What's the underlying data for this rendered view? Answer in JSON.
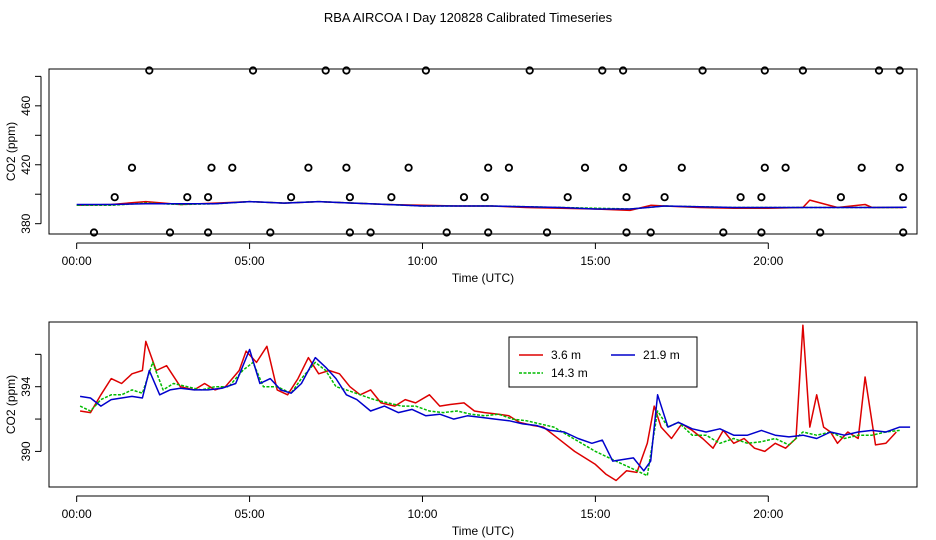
{
  "title": "RBA AIRCOA I  Day 120828  Calibrated Timeseries",
  "colors": {
    "s1": "#dd0000",
    "s2": "#00bb00",
    "s3": "#0000cc",
    "axis": "#000000"
  },
  "chart_data": [
    {
      "type": "line",
      "name": "top-panel",
      "xlabel": "Time (UTC)",
      "ylabel": "CO2 (ppm)",
      "xlim": [
        -0.8,
        24.3
      ],
      "ylim": [
        373,
        485
      ],
      "xticks": [
        0,
        5,
        10,
        15,
        20
      ],
      "xticklabels": [
        "00:00",
        "05:00",
        "10:00",
        "15:00",
        "20:00"
      ],
      "yticks": [
        380,
        420,
        460
      ],
      "yticklabels": [
        "380",
        "420",
        "460"
      ],
      "extra_yticks": [
        400,
        440,
        480
      ],
      "series": [
        {
          "name": "3.6 m",
          "color": "#dd0000",
          "x": [
            0,
            1,
            2,
            3,
            4,
            5,
            6,
            7,
            8,
            9,
            10,
            11,
            12,
            13,
            14,
            15,
            16,
            16.6,
            17,
            18,
            19,
            20,
            21,
            21.2,
            22,
            22.8,
            23,
            23.9
          ],
          "y": [
            392.5,
            393,
            395,
            393,
            394,
            395,
            394,
            395,
            394,
            393,
            392.5,
            392,
            392,
            391,
            390.5,
            390,
            389,
            392.5,
            392,
            391,
            390.5,
            390.5,
            391,
            396,
            391,
            393,
            391,
            391
          ]
        },
        {
          "name": "14.3 m",
          "color": "#00bb00",
          "x": [
            0,
            1,
            2,
            3,
            4,
            5,
            6,
            7,
            8,
            9,
            10,
            11,
            12,
            13,
            14,
            15,
            16,
            17,
            18,
            19,
            20,
            21,
            22,
            23,
            23.9
          ],
          "y": [
            392.5,
            392.5,
            394,
            393,
            393.5,
            395,
            394,
            395,
            394,
            393,
            392,
            392,
            392,
            391.5,
            391,
            390.5,
            390,
            392,
            391.5,
            391,
            391,
            391,
            391,
            391,
            391
          ]
        },
        {
          "name": "21.9 m",
          "color": "#0000cc",
          "x": [
            0,
            1,
            2,
            3,
            4,
            5,
            6,
            7,
            8,
            9,
            10,
            11,
            12,
            13,
            14,
            15,
            16,
            17,
            18,
            19,
            20,
            21,
            22,
            23,
            24
          ],
          "y": [
            393,
            393,
            393.5,
            393.5,
            393.5,
            395,
            394,
            395,
            394,
            393,
            392,
            392,
            392,
            391.5,
            391,
            390,
            390,
            392,
            391.5,
            391,
            391,
            391,
            391,
            391,
            391.2
          ]
        }
      ],
      "markers": {
        "shape": "circle",
        "x": [
          0.5,
          2.1,
          2.7,
          3.8,
          5.1,
          5.6,
          7.2,
          7.8,
          7.9,
          8.5,
          10.1,
          10.7,
          11.9,
          13.1,
          13.6,
          15.2,
          15.8,
          15.9,
          16.6,
          18.1,
          18.7,
          19.8,
          19.9,
          21.0,
          21.5,
          23.2,
          23.8,
          23.9,
          1.1,
          3.2,
          3.8,
          6.2,
          7.9,
          9.1,
          11.2,
          11.8,
          14.2,
          15.9,
          17.0,
          19.2,
          19.8,
          22.1,
          23.9,
          1.6,
          3.9,
          4.5,
          6.7,
          7.8,
          9.6,
          11.9,
          12.5,
          14.7,
          15.8,
          17.5,
          19.9,
          20.5,
          22.7,
          23.8
        ],
        "y": [
          374,
          484,
          374,
          374,
          484,
          374,
          484,
          484,
          374,
          374,
          484,
          374,
          374,
          484,
          374,
          484,
          484,
          374,
          374,
          484,
          374,
          374,
          484,
          484,
          374,
          484,
          484,
          374,
          398,
          398,
          398,
          398,
          398,
          398,
          398,
          398,
          398,
          398,
          398,
          398,
          398,
          398,
          398,
          418,
          418,
          418,
          418,
          418,
          418,
          418,
          418,
          418,
          418,
          418,
          418,
          418,
          418,
          418
        ]
      }
    },
    {
      "type": "line",
      "name": "bottom-panel",
      "xlabel": "Time (UTC)",
      "ylabel": "CO2 (ppm)",
      "xlim": [
        -0.8,
        24.3
      ],
      "ylim": [
        387.8,
        398.0
      ],
      "xticks": [
        0,
        5,
        10,
        15,
        20
      ],
      "xticklabels": [
        "00:00",
        "05:00",
        "10:00",
        "15:00",
        "20:00"
      ],
      "yticks": [
        390,
        394
      ],
      "yticklabels": [
        "390",
        "394"
      ],
      "extra_yticks": [
        392,
        396
      ],
      "legend": {
        "position": "top-center",
        "entries": [
          "3.6 m",
          "14.3 m",
          "21.9 m"
        ]
      },
      "series": [
        {
          "name": "3.6 m",
          "color": "#dd0000",
          "x": [
            0.1,
            0.4,
            0.7,
            1.0,
            1.3,
            1.6,
            1.9,
            2.0,
            2.3,
            2.6,
            3.0,
            3.4,
            3.7,
            4.0,
            4.3,
            4.7,
            4.9,
            5.2,
            5.5,
            5.8,
            6.1,
            6.4,
            6.7,
            7.0,
            7.3,
            7.6,
            7.9,
            8.2,
            8.5,
            8.8,
            9.2,
            9.5,
            9.8,
            10.2,
            10.5,
            10.8,
            11.2,
            11.5,
            11.8,
            12.2,
            12.5,
            12.8,
            13.2,
            13.5,
            13.8,
            14.1,
            14.4,
            14.7,
            15.0,
            15.3,
            15.6,
            15.9,
            16.2,
            16.5,
            16.7,
            16.9,
            17.2,
            17.5,
            17.8,
            18.1,
            18.4,
            18.7,
            19.0,
            19.3,
            19.6,
            19.9,
            20.2,
            20.5,
            20.8,
            21.0,
            21.2,
            21.4,
            21.6,
            21.8,
            22.0,
            22.3,
            22.6,
            22.8,
            23.1,
            23.4,
            23.7
          ],
          "y": [
            392.5,
            392.4,
            393.5,
            394.5,
            394.2,
            394.8,
            395.0,
            396.8,
            395.0,
            395.3,
            394.0,
            393.8,
            394.2,
            393.8,
            394.0,
            395.0,
            396.2,
            395.5,
            396.5,
            393.8,
            393.5,
            394.5,
            395.8,
            394.8,
            395.0,
            394.8,
            394.0,
            393.5,
            393.8,
            393.0,
            392.8,
            393.2,
            393.0,
            393.5,
            392.8,
            392.9,
            393.0,
            392.5,
            392.4,
            392.3,
            392.2,
            391.8,
            391.6,
            391.5,
            391.0,
            390.5,
            390.0,
            389.6,
            389.2,
            388.6,
            388.2,
            388.8,
            388.7,
            390.5,
            392.8,
            391.5,
            390.8,
            391.7,
            391.3,
            390.8,
            390.2,
            391.3,
            390.5,
            390.8,
            390.2,
            390.0,
            390.5,
            390.2,
            390.8,
            397.8,
            391.5,
            393.5,
            391.5,
            391.2,
            390.5,
            391.2,
            390.8,
            394.6,
            390.4,
            390.5,
            391.2
          ]
        },
        {
          "name": "14.3 m",
          "color": "#00bb00",
          "x": [
            0.1,
            0.4,
            0.7,
            1.0,
            1.3,
            1.6,
            1.9,
            2.2,
            2.5,
            2.8,
            3.2,
            3.6,
            4.0,
            4.4,
            4.8,
            5.1,
            5.4,
            5.8,
            6.2,
            6.5,
            6.9,
            7.2,
            7.5,
            7.8,
            8.2,
            8.6,
            9.0,
            9.4,
            9.8,
            10.2,
            10.6,
            11.0,
            11.4,
            11.8,
            12.2,
            12.6,
            13.0,
            13.4,
            13.8,
            14.2,
            14.6,
            15.0,
            15.4,
            15.8,
            16.2,
            16.5,
            16.8,
            17.1,
            17.4,
            17.8,
            18.2,
            18.6,
            19.0,
            19.4,
            19.8,
            20.2,
            20.6,
            21.0,
            21.4,
            21.8,
            22.2,
            22.6,
            23.0,
            23.4,
            23.8
          ],
          "y": [
            392.8,
            392.5,
            393.2,
            393.5,
            393.5,
            393.8,
            393.6,
            395.5,
            393.8,
            394.2,
            394.0,
            393.8,
            394.0,
            394.0,
            395.0,
            395.5,
            394.0,
            394.0,
            393.6,
            394.5,
            395.5,
            395.0,
            394.0,
            393.8,
            393.5,
            393.2,
            393.0,
            392.8,
            392.8,
            392.5,
            392.4,
            392.5,
            392.3,
            392.2,
            392.3,
            392.0,
            391.9,
            391.7,
            391.5,
            391.0,
            390.5,
            390.0,
            389.6,
            389.2,
            388.8,
            388.5,
            392.5,
            391.5,
            391.8,
            391.0,
            391.0,
            390.5,
            390.8,
            390.5,
            390.6,
            390.8,
            390.4,
            391.2,
            391.0,
            391.2,
            390.8,
            391.0,
            391.0,
            391.2,
            391.3
          ]
        },
        {
          "name": "21.9 m",
          "color": "#0000cc",
          "x": [
            0.1,
            0.4,
            0.7,
            1.0,
            1.3,
            1.6,
            1.9,
            2.1,
            2.4,
            2.7,
            3.0,
            3.4,
            3.8,
            4.2,
            4.6,
            5.0,
            5.3,
            5.6,
            5.9,
            6.2,
            6.5,
            6.9,
            7.2,
            7.5,
            7.8,
            8.1,
            8.5,
            8.9,
            9.3,
            9.7,
            10.1,
            10.5,
            10.9,
            11.3,
            11.7,
            12.1,
            12.5,
            12.9,
            13.3,
            13.7,
            14.1,
            14.5,
            14.9,
            15.2,
            15.5,
            15.8,
            16.1,
            16.4,
            16.6,
            16.8,
            17.1,
            17.4,
            17.8,
            18.2,
            18.6,
            19.0,
            19.4,
            19.8,
            20.2,
            20.6,
            21.0,
            21.4,
            21.8,
            22.2,
            22.6,
            23.0,
            23.4,
            23.8,
            24.1
          ],
          "y": [
            393.4,
            393.3,
            392.8,
            393.2,
            393.3,
            393.4,
            393.3,
            395.0,
            393.5,
            393.8,
            393.9,
            393.8,
            393.8,
            393.9,
            394.2,
            396.3,
            394.2,
            394.5,
            393.8,
            393.6,
            394.2,
            395.8,
            395.2,
            394.5,
            393.5,
            393.2,
            392.5,
            392.8,
            392.4,
            392.6,
            392.2,
            392.3,
            392.0,
            392.2,
            392.1,
            392.0,
            391.9,
            391.7,
            391.6,
            391.3,
            391.2,
            390.8,
            390.5,
            390.7,
            389.4,
            389.5,
            389.6,
            388.8,
            389.4,
            393.5,
            391.5,
            391.8,
            391.4,
            391.2,
            391.4,
            391.0,
            391.0,
            391.3,
            391.0,
            390.9,
            391.0,
            390.8,
            391.2,
            391.0,
            391.2,
            391.3,
            391.2,
            391.5,
            391.5
          ]
        }
      ]
    }
  ]
}
